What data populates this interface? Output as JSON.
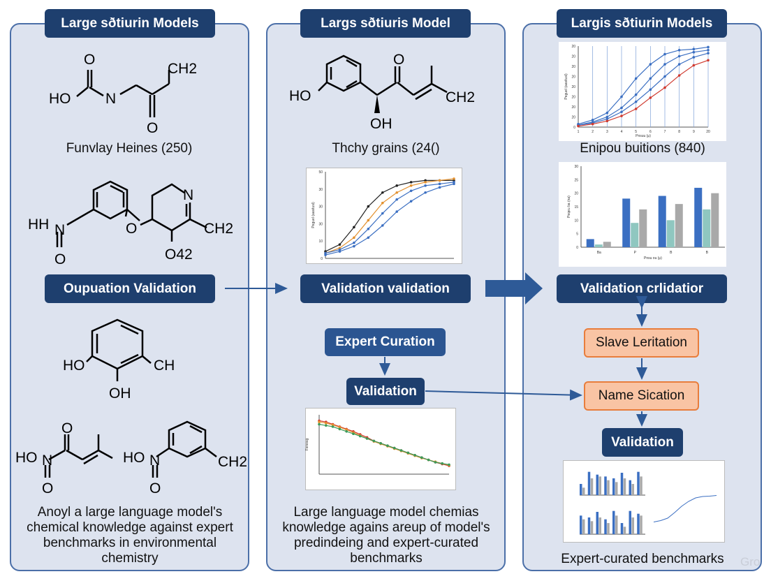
{
  "panels": [
    {
      "header": "Large sðtiurin Models",
      "caption1": "Funvlay Heines (250)",
      "validation": "Oupuation Validation",
      "molecule_labels": {
        "m1": [
          "HO",
          "N",
          "O",
          "O",
          "CH2"
        ],
        "m2": [
          "HH",
          "N",
          "O",
          "O",
          "N",
          "CH2",
          "O42"
        ],
        "m3": [
          "HO",
          "OH",
          "CH"
        ],
        "m4a": [
          "HO",
          "N",
          "O",
          "O"
        ],
        "m4b": [
          "HO",
          "N",
          "O",
          "CH2"
        ]
      },
      "bottom_caption": "Anoyl a large language model's chemical knowledge against expert benchmarks in environmental chemistry"
    },
    {
      "header": "Largs sðtiuris Model",
      "caption1": "Thchy grains (24()",
      "validation": "Validation validation",
      "expert": "Expert Curation",
      "validation2": "Validation",
      "molecule_labels": {
        "m1": [
          "HO",
          "O",
          "OH",
          "CH2"
        ]
      },
      "bottom_caption": "Large language model chemias knowledge agains areup of model's predindeing and expert-curated benchmarks"
    },
    {
      "header": "Largis sðtiurin Models",
      "caption1": "Enipou buitions (840)",
      "validation": "Validation crlidatior",
      "slave": "Slave Leritation",
      "name": "Name Sication",
      "validation3": "Validation",
      "bottom_caption": "Expert-curated benchmarks",
      "watermark": "Gro"
    }
  ],
  "colors": {
    "panel_bg": "#dde3ef",
    "panel_border": "#4b6fa8",
    "pill_dark": "#1e3f6e",
    "pill_orange_bg": "#f9c4a4",
    "pill_orange_border": "#e87d3c",
    "arrow": "#2e5a97",
    "series_blue": "#3b6fc2",
    "series_orange": "#e3912f",
    "series_red": "#d03a2f",
    "series_gray": "#a9a9a9",
    "series_teal": "#8fc7c0"
  },
  "chart_data": [
    {
      "type": "line",
      "x": [
        1,
        2,
        3,
        4,
        5,
        6,
        7,
        8,
        9,
        10
      ],
      "xticks": [
        "1",
        "2",
        "3",
        "4",
        "5",
        "6",
        "7",
        "8",
        "9",
        "20"
      ],
      "yticks": [
        "0",
        "20",
        "20",
        "20",
        "20",
        "20",
        "20",
        "20",
        "20"
      ],
      "ylim": [
        0,
        80
      ],
      "xlabel": "Pnsuu (μ)",
      "ylabel": "Peguel (aasitusl)",
      "series": [
        {
          "color": "#3b6fc2",
          "values": [
            3,
            7,
            14,
            30,
            48,
            62,
            72,
            76,
            77,
            79
          ]
        },
        {
          "color": "#3b6fc2",
          "values": [
            2,
            5,
            10,
            19,
            32,
            48,
            62,
            70,
            74,
            76
          ]
        },
        {
          "color": "#3b6fc2",
          "values": [
            2,
            4,
            8,
            15,
            25,
            37,
            50,
            62,
            69,
            73
          ]
        },
        {
          "color": "#d03a2f",
          "values": [
            1,
            3,
            6,
            11,
            18,
            29,
            39,
            51,
            61,
            66
          ]
        }
      ]
    },
    {
      "type": "line",
      "x": [
        1,
        2,
        3,
        4,
        5,
        6,
        7,
        8,
        9,
        10
      ],
      "yticks": [
        "0",
        "10",
        "30",
        "30",
        "30",
        "50"
      ],
      "ylim": [
        0,
        50
      ],
      "ylabel": "Peguel (aasitusl)",
      "series": [
        {
          "color": "#222222",
          "values": [
            4,
            8,
            18,
            30,
            38,
            42,
            44,
            45,
            45,
            45
          ]
        },
        {
          "color": "#e3912f",
          "values": [
            3,
            6,
            12,
            22,
            32,
            38,
            42,
            44,
            45,
            46
          ]
        },
        {
          "color": "#3b6fc2",
          "values": [
            3,
            5,
            9,
            17,
            26,
            34,
            39,
            42,
            43,
            44
          ]
        },
        {
          "color": "#3b6fc2",
          "values": [
            2,
            4,
            7,
            12,
            19,
            27,
            33,
            38,
            41,
            43
          ]
        }
      ]
    },
    {
      "type": "bar",
      "categories": [
        "Ba",
        "P",
        "B",
        "B"
      ],
      "yticks": [
        "0",
        "5",
        "10",
        "15",
        "20",
        "25",
        "30"
      ],
      "ylim": [
        0,
        30
      ],
      "xlabel": "Pnsu ou (μ)",
      "ylabel": "Peqeu ba (na)",
      "series": [
        {
          "color": "#3b6fc2",
          "values": [
            3,
            18,
            19,
            22
          ]
        },
        {
          "color": "#8fc7c0",
          "values": [
            1,
            9,
            10,
            14
          ]
        },
        {
          "color": "#a9a9a9",
          "values": [
            2,
            14,
            16,
            20
          ]
        }
      ]
    },
    {
      "type": "line",
      "x": [
        1,
        2,
        3,
        4,
        5,
        6,
        7,
        8,
        9,
        10,
        11,
        12,
        13,
        14,
        15,
        16,
        17,
        18,
        19,
        20
      ],
      "ylim": [
        0,
        100
      ],
      "ylabel": "Fsnewg",
      "series": [
        {
          "color": "#d03a2f",
          "values": [
            90,
            88,
            84,
            80,
            76,
            72,
            67,
            62,
            56,
            52,
            48,
            44,
            40,
            36,
            32,
            28,
            24,
            20,
            17,
            14
          ]
        },
        {
          "color": "#e3912f",
          "values": [
            88,
            86,
            83,
            79,
            75,
            70,
            65,
            60,
            55,
            51,
            47,
            43,
            39,
            35,
            31,
            27,
            24,
            21,
            18,
            15
          ]
        },
        {
          "color": "#3b9a5a",
          "values": [
            84,
            82,
            80,
            76,
            72,
            68,
            64,
            60,
            56,
            52,
            48,
            44,
            40,
            36,
            32,
            28,
            24,
            20,
            18,
            16
          ]
        }
      ]
    },
    {
      "type": "bar",
      "categories": [
        "1",
        "2",
        "3",
        "4",
        "5",
        "6",
        "7",
        "8"
      ],
      "series": [
        {
          "color": "#3b6fc2",
          "values": [
            12,
            25,
            22,
            20,
            18,
            24,
            16,
            25
          ]
        },
        {
          "color": "#a9a9a9",
          "values": [
            8,
            18,
            20,
            16,
            14,
            18,
            12,
            20
          ]
        }
      ]
    }
  ]
}
